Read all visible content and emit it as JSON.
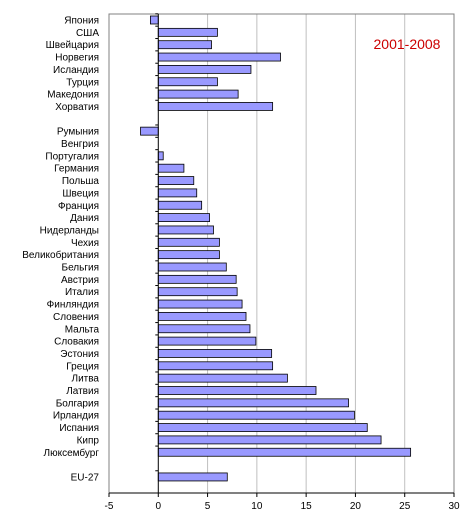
{
  "chart_data": {
    "type": "bar",
    "orientation": "horizontal",
    "title": "2001-2008",
    "title_color": "#cc0000",
    "bar_color": "#9999ff",
    "bar_stroke": "#000000",
    "grid": true,
    "grid_color": "#c0c0c0",
    "xlim": [
      -5,
      30
    ],
    "x_ticks": [
      -5,
      0,
      5,
      10,
      15,
      20,
      25,
      30
    ],
    "groups": [
      [
        {
          "label": "Япония",
          "value": -0.8
        },
        {
          "label": "США",
          "value": 6.0
        },
        {
          "label": "Швейцария",
          "value": 5.4
        },
        {
          "label": "Норвегия",
          "value": 12.4
        },
        {
          "label": "Исландия",
          "value": 9.4
        },
        {
          "label": "Турция",
          "value": 6.0
        },
        {
          "label": "Македония",
          "value": 8.1
        },
        {
          "label": "Хорватия",
          "value": 11.6
        }
      ],
      [
        {
          "label": "Румыния",
          "value": -1.8
        },
        {
          "label": "Венгрия",
          "value": 0.0
        },
        {
          "label": "Португалия",
          "value": 0.5
        },
        {
          "label": "Германия",
          "value": 2.6
        },
        {
          "label": "Польша",
          "value": 3.6
        },
        {
          "label": "Швеция",
          "value": 3.9
        },
        {
          "label": "Франция",
          "value": 4.4
        },
        {
          "label": "Дания",
          "value": 5.2
        },
        {
          "label": "Нидерланды",
          "value": 5.6
        },
        {
          "label": "Чехия",
          "value": 6.2
        },
        {
          "label": "Великобритания",
          "value": 6.2
        },
        {
          "label": "Бельгия",
          "value": 6.9
        },
        {
          "label": "Австрия",
          "value": 7.9
        },
        {
          "label": "Италия",
          "value": 8.0
        },
        {
          "label": "Финляндия",
          "value": 8.5
        },
        {
          "label": "Словения",
          "value": 8.9
        },
        {
          "label": "Мальта",
          "value": 9.3
        },
        {
          "label": "Словакия",
          "value": 9.9
        },
        {
          "label": "Эстония",
          "value": 11.5
        },
        {
          "label": "Греция",
          "value": 11.6
        },
        {
          "label": "Литва",
          "value": 13.1
        },
        {
          "label": "Латвия",
          "value": 16.0
        },
        {
          "label": "Болгария",
          "value": 19.3
        },
        {
          "label": "Ирландия",
          "value": 19.9
        },
        {
          "label": "Испания",
          "value": 21.2
        },
        {
          "label": "Кипр",
          "value": 22.6
        },
        {
          "label": "Люксембург",
          "value": 25.6
        }
      ],
      [
        {
          "label": "EU-27",
          "value": 7.0
        }
      ]
    ]
  }
}
